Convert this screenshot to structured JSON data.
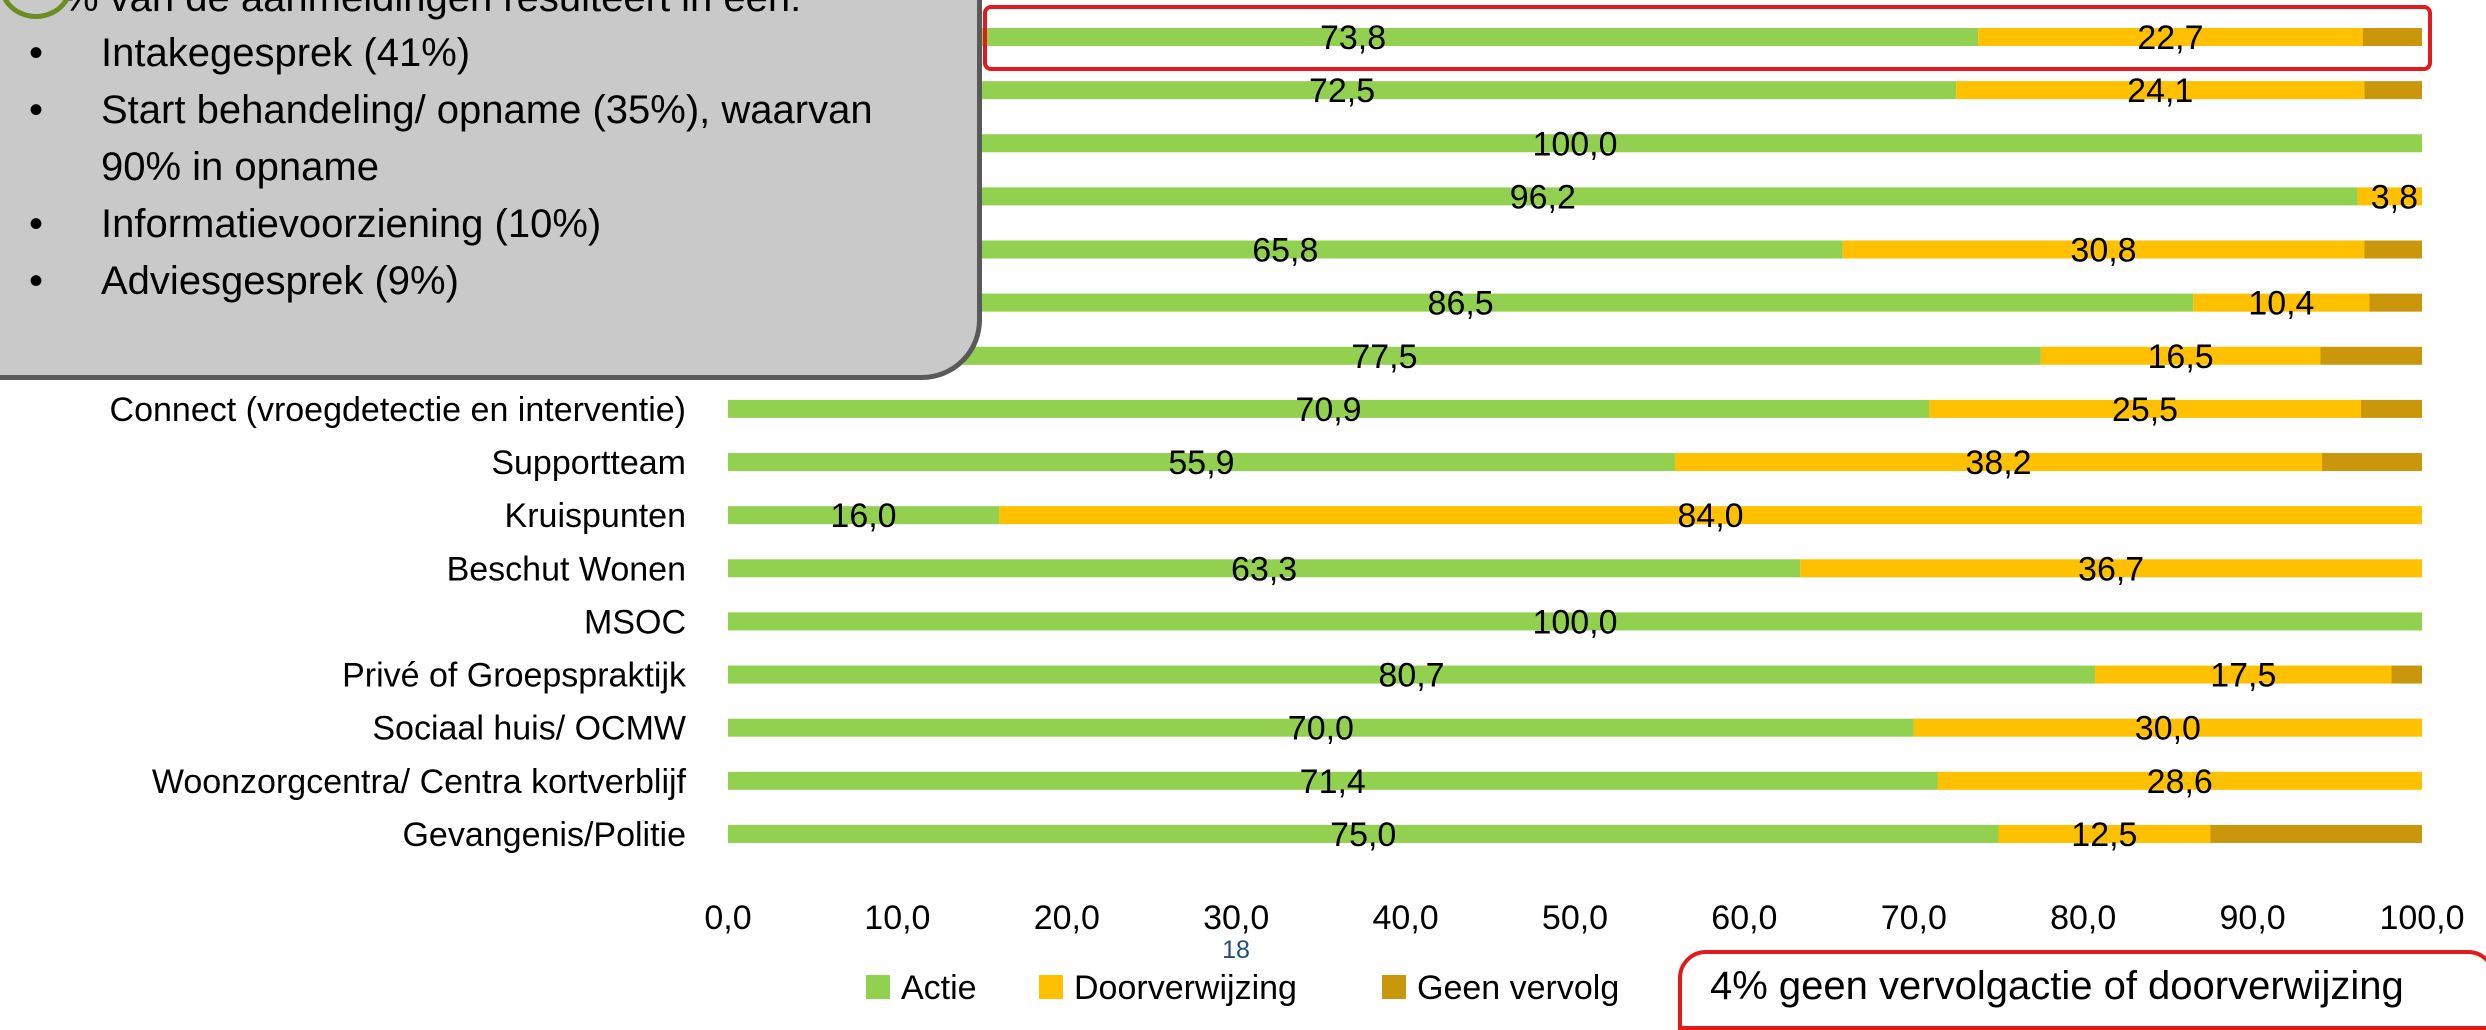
{
  "chart_data": {
    "type": "bar",
    "orientation": "horizontal",
    "stacked": true,
    "categories_visible": [
      "Connect (vroegdetectie en interventie)",
      "Supportteam",
      "Kruispunten",
      "Beschut Wonen",
      "MSOC",
      "Privé of Groepspraktijk",
      "Sociaal huis/ OCMW",
      "Woonzorgcentra/ Centra kortverblijf",
      "Gevangenis/Politie"
    ],
    "rows": [
      {
        "label": "",
        "actie": 73.8,
        "doorverwijzing": 22.7,
        "geen": 3.5,
        "actie_label": "73,8",
        "door_label": "22,7"
      },
      {
        "label": "",
        "actie": 72.5,
        "doorverwijzing": 24.1,
        "geen": 3.4,
        "actie_label": "72,5",
        "door_label": "24,1"
      },
      {
        "label": "",
        "actie": 100.0,
        "doorverwijzing": 0,
        "geen": 0,
        "actie_label": "100,0",
        "door_label": ""
      },
      {
        "label": "",
        "actie": 96.2,
        "doorverwijzing": 3.8,
        "geen": 0,
        "actie_label": "96,2",
        "door_label": "3,8"
      },
      {
        "label": "",
        "actie": 65.8,
        "doorverwijzing": 30.8,
        "geen": 3.4,
        "actie_label": "65,8",
        "door_label": "30,8"
      },
      {
        "label": "",
        "actie": 86.5,
        "doorverwijzing": 10.4,
        "geen": 3.1,
        "actie_label": "86,5",
        "door_label": "10,4"
      },
      {
        "label": "",
        "actie": 77.5,
        "doorverwijzing": 16.5,
        "geen": 6.0,
        "actie_label": "77,5",
        "door_label": "16,5"
      },
      {
        "label": "Connect (vroegdetectie en interventie)",
        "actie": 70.9,
        "doorverwijzing": 25.5,
        "geen": 3.6,
        "actie_label": "70,9",
        "door_label": "25,5"
      },
      {
        "label": "Supportteam",
        "actie": 55.9,
        "doorverwijzing": 38.2,
        "geen": 5.9,
        "actie_label": "55,9",
        "door_label": "38,2"
      },
      {
        "label": "Kruispunten",
        "actie": 16.0,
        "doorverwijzing": 84.0,
        "geen": 0,
        "actie_label": "16,0",
        "door_label": "84,0"
      },
      {
        "label": "Beschut Wonen",
        "actie": 63.3,
        "doorverwijzing": 36.7,
        "geen": 0,
        "actie_label": "63,3",
        "door_label": "36,7"
      },
      {
        "label": "MSOC",
        "actie": 100.0,
        "doorverwijzing": 0,
        "geen": 0,
        "actie_label": "100,0",
        "door_label": ""
      },
      {
        "label": "Privé of Groepspraktijk",
        "actie": 80.7,
        "doorverwijzing": 17.5,
        "geen": 1.8,
        "actie_label": "80,7",
        "door_label": "17,5"
      },
      {
        "label": "Sociaal huis/ OCMW",
        "actie": 70.0,
        "doorverwijzing": 30.0,
        "geen": 0,
        "actie_label": "70,0",
        "door_label": "30,0"
      },
      {
        "label": "Woonzorgcentra/ Centra kortverblijf",
        "actie": 71.4,
        "doorverwijzing": 28.6,
        "geen": 0,
        "actie_label": "71,4",
        "door_label": "28,6"
      },
      {
        "label": "Gevangenis/Politie",
        "actie": 75.0,
        "doorverwijzing": 12.5,
        "geen": 12.5,
        "actie_label": "75,0",
        "door_label": "12,5"
      }
    ],
    "series": [
      {
        "name": "Actie",
        "key": "actie",
        "color": "#92d050"
      },
      {
        "name": "Doorverwijzing",
        "key": "doorverwijzing",
        "color": "#ffc000"
      },
      {
        "name": "Geen vervolg",
        "key": "geen",
        "color": "#c9960c"
      }
    ],
    "xlim": [
      0,
      100
    ],
    "xticks": [
      0,
      10,
      20,
      30,
      40,
      50,
      60,
      70,
      80,
      90,
      100
    ],
    "xtick_labels": [
      "0,0",
      "10,0",
      "20,0",
      "30,0",
      "40,0",
      "50,0",
      "60,0",
      "70,0",
      "80,0",
      "90,0",
      "100,0"
    ],
    "legend_position": "bottom",
    "highlighted_row_index": 0,
    "highlight_color": "#e31a1c"
  },
  "callout": {
    "heading": "% van de aanmeldingen resulteert in een:",
    "items": [
      "Intakegesprek (41%)",
      "Start behandeling/ opname (35%), waarvan 90% in opname",
      "Informatievoorziening (10%)",
      "Adviesgesprek (9%)"
    ]
  },
  "note": "4% geen vervolgactie of doorverwijzing",
  "page_number": "18"
}
